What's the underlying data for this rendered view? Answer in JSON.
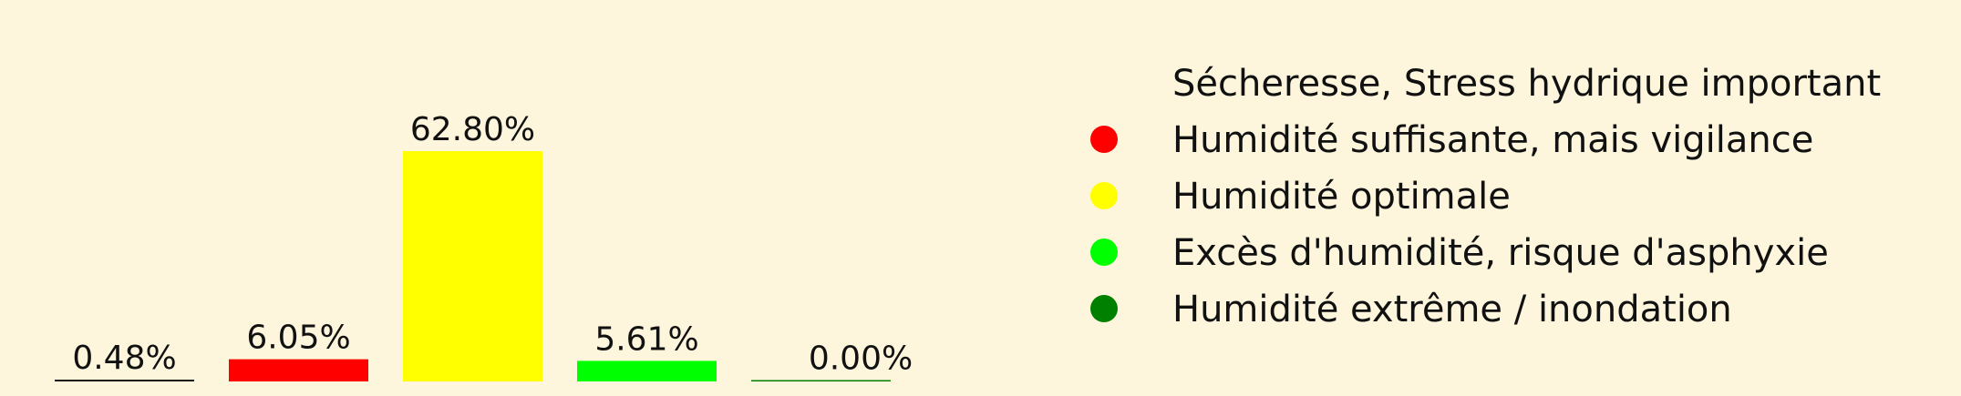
{
  "chart_data": {
    "type": "bar",
    "categories": [
      "Sécheresse, Stress hydrique important",
      "Humidité suffisante, mais vigilance",
      "Humidité optimale",
      "Excès d'humidité, risque d'asphyxie",
      "Humidité extrême / inondation"
    ],
    "values": [
      0.48,
      6.05,
      62.8,
      5.61,
      0.0
    ],
    "value_labels": [
      "0.48%",
      "6.05%",
      "62.80%",
      "5.61%",
      "0.00%"
    ],
    "colors": [
      "#111111",
      "#ff0000",
      "#ffff00",
      "#00ff00",
      "#008000"
    ],
    "ylim": [
      0,
      70
    ],
    "grid": false,
    "legend_position": "right"
  }
}
